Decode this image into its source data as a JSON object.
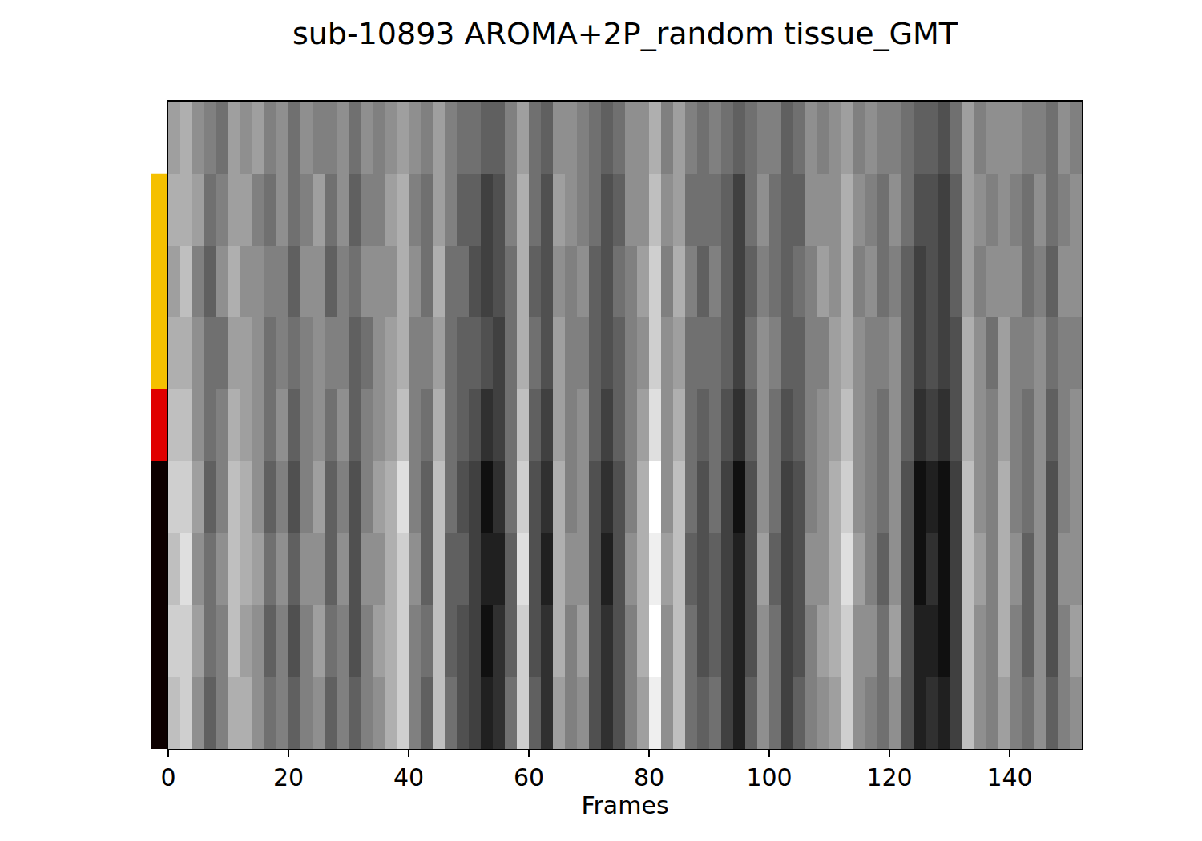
{
  "chart_data": {
    "type": "heatmap",
    "title": "sub-10893 AROMA+2P_random tissue_GMT",
    "x_label": "Frames",
    "x": [
      1,
      3,
      5,
      7,
      9,
      11,
      13,
      15,
      17,
      19,
      21,
      23,
      25,
      27,
      29,
      31,
      33,
      35,
      37,
      39,
      41,
      43,
      45,
      47,
      49,
      51,
      53,
      55,
      57,
      59,
      61,
      63,
      65,
      67,
      69,
      71,
      73,
      75,
      77,
      79,
      81,
      83,
      85,
      87,
      89,
      91,
      93,
      95,
      97,
      99,
      101,
      103,
      105,
      107,
      109,
      111,
      113,
      115,
      117,
      119,
      121,
      123,
      125,
      127,
      129,
      131,
      133,
      135,
      137,
      139,
      141,
      143,
      145,
      147,
      149,
      151
    ],
    "y": [
      0,
      1,
      2,
      3,
      4,
      5,
      6,
      7,
      8
    ],
    "xlim": [
      0,
      152
    ],
    "xticks": [
      0,
      20,
      40,
      60,
      80,
      100,
      120,
      140
    ],
    "ylim": [
      8.5,
      -0.5
    ],
    "tick_labels": "x",
    "zlim": [
      -0.8,
      0.8
    ],
    "color": "gray",
    "row_groups": [
      {
        "color": "#f5c000",
        "rows": [
          1,
          3
        ]
      },
      {
        "color": "#e00000",
        "rows": [
          4,
          4
        ]
      },
      {
        "color": "#0d0000",
        "rows": [
          5,
          8
        ]
      }
    ],
    "cells": [
      [
        0.2,
        0.3,
        0.1,
        0.0,
        -0.1,
        0.2,
        0.1,
        0.2,
        0.0,
        0.1,
        -0.1,
        0.1,
        0.0,
        0.0,
        0.1,
        -0.1,
        0.1,
        0.0,
        0.1,
        0.2,
        0.1,
        0.0,
        0.2,
        0.0,
        -0.1,
        -0.1,
        -0.2,
        -0.2,
        0.0,
        0.2,
        -0.1,
        -0.2,
        0.1,
        0.1,
        0.0,
        -0.1,
        -0.2,
        -0.1,
        0.1,
        0.1,
        0.3,
        0.0,
        0.2,
        0.0,
        -0.1,
        0.0,
        -0.1,
        -0.2,
        -0.1,
        0.0,
        0.0,
        -0.2,
        -0.1,
        0.1,
        0.0,
        0.1,
        0.2,
        0.0,
        0.1,
        0.0,
        0.0,
        -0.1,
        -0.2,
        -0.2,
        -0.3,
        -0.1,
        0.2,
        0.0,
        0.1,
        0.1,
        0.1,
        0.0,
        0.0,
        -0.1,
        0.1,
        0.0
      ],
      [
        0.3,
        0.3,
        0.2,
        -0.1,
        0.0,
        0.2,
        0.2,
        0.0,
        -0.1,
        0.1,
        -0.1,
        0.0,
        0.2,
        -0.1,
        0.1,
        -0.2,
        0.0,
        0.0,
        0.2,
        0.3,
        0.0,
        -0.1,
        0.2,
        0.0,
        -0.2,
        -0.2,
        -0.4,
        -0.3,
        0.0,
        0.3,
        -0.1,
        -0.3,
        0.2,
        0.1,
        0.0,
        -0.1,
        -0.3,
        -0.2,
        0.1,
        0.1,
        0.4,
        0.1,
        0.2,
        -0.1,
        -0.1,
        -0.1,
        -0.2,
        -0.4,
        -0.1,
        0.1,
        -0.1,
        -0.2,
        -0.2,
        0.1,
        0.1,
        0.1,
        0.3,
        0.1,
        0.0,
        -0.1,
        0.1,
        -0.1,
        -0.3,
        -0.3,
        -0.4,
        -0.2,
        0.2,
        0.1,
        0.0,
        0.1,
        0.0,
        -0.1,
        0.1,
        -0.1,
        0.0,
        0.1
      ],
      [
        0.2,
        0.4,
        0.0,
        -0.2,
        0.1,
        0.3,
        0.1,
        0.1,
        0.0,
        0.0,
        -0.2,
        0.1,
        0.1,
        -0.2,
        0.0,
        -0.1,
        0.1,
        0.1,
        0.1,
        0.3,
        0.1,
        -0.1,
        0.3,
        -0.1,
        -0.1,
        -0.3,
        -0.4,
        -0.3,
        -0.1,
        0.3,
        -0.2,
        -0.3,
        0.1,
        0.0,
        0.1,
        -0.2,
        -0.3,
        -0.1,
        0.0,
        0.2,
        0.5,
        0.0,
        0.3,
        0.0,
        -0.2,
        0.0,
        -0.2,
        -0.4,
        -0.2,
        0.0,
        -0.1,
        -0.2,
        -0.1,
        0.0,
        0.2,
        0.1,
        0.3,
        0.0,
        0.1,
        -0.1,
        0.0,
        -0.2,
        -0.4,
        -0.3,
        -0.4,
        -0.2,
        0.2,
        0.0,
        0.1,
        0.1,
        0.1,
        -0.1,
        0.0,
        -0.2,
        0.1,
        0.1
      ],
      [
        0.3,
        0.3,
        0.1,
        -0.1,
        -0.1,
        0.2,
        0.2,
        0.1,
        -0.1,
        0.0,
        -0.1,
        0.0,
        0.1,
        0.0,
        0.0,
        -0.2,
        -0.1,
        0.1,
        0.2,
        0.3,
        0.0,
        0.0,
        0.2,
        -0.1,
        -0.2,
        -0.2,
        -0.3,
        -0.4,
        -0.1,
        0.3,
        -0.1,
        -0.3,
        0.2,
        0.0,
        0.0,
        -0.2,
        -0.3,
        -0.2,
        0.0,
        0.1,
        0.5,
        0.1,
        0.2,
        -0.1,
        -0.1,
        -0.1,
        -0.2,
        -0.4,
        -0.1,
        0.1,
        0.0,
        -0.2,
        -0.2,
        0.0,
        0.0,
        0.2,
        0.3,
        0.1,
        0.0,
        0.0,
        0.1,
        -0.2,
        -0.4,
        -0.3,
        -0.4,
        -0.3,
        0.3,
        0.1,
        -0.1,
        0.2,
        0.0,
        0.0,
        0.1,
        -0.1,
        0.0,
        0.0
      ],
      [
        0.4,
        0.4,
        0.1,
        -0.1,
        0.0,
        0.3,
        0.2,
        0.1,
        -0.1,
        0.1,
        -0.2,
        0.0,
        0.1,
        -0.1,
        0.1,
        -0.2,
        0.0,
        0.1,
        0.2,
        0.4,
        0.0,
        -0.1,
        0.3,
        -0.1,
        -0.2,
        -0.3,
        -0.5,
        -0.4,
        -0.1,
        0.4,
        -0.2,
        -0.4,
        0.2,
        0.0,
        0.1,
        -0.2,
        -0.4,
        -0.2,
        0.0,
        0.2,
        0.6,
        0.1,
        0.3,
        -0.1,
        -0.2,
        -0.1,
        -0.3,
        -0.5,
        -0.2,
        0.1,
        -0.1,
        -0.3,
        -0.2,
        0.0,
        0.1,
        0.2,
        0.4,
        0.1,
        0.0,
        -0.1,
        0.1,
        -0.2,
        -0.5,
        -0.4,
        -0.5,
        -0.3,
        0.3,
        0.1,
        0.0,
        0.2,
        0.0,
        -0.1,
        0.1,
        -0.2,
        0.0,
        0.1
      ],
      [
        0.5,
        0.5,
        0.2,
        -0.2,
        0.0,
        0.4,
        0.3,
        0.1,
        -0.2,
        0.0,
        -0.3,
        0.0,
        0.2,
        -0.2,
        0.0,
        -0.3,
        0.0,
        0.2,
        0.3,
        0.6,
        0.0,
        -0.2,
        0.4,
        -0.1,
        -0.3,
        -0.4,
        -0.7,
        -0.5,
        -0.1,
        0.5,
        -0.3,
        -0.5,
        0.3,
        0.0,
        0.1,
        -0.3,
        -0.5,
        -0.3,
        0.0,
        0.3,
        0.8,
        0.1,
        0.4,
        -0.1,
        -0.3,
        -0.1,
        -0.4,
        -0.7,
        -0.3,
        0.1,
        -0.1,
        -0.4,
        -0.3,
        0.0,
        0.1,
        0.3,
        0.5,
        0.1,
        0.0,
        -0.1,
        0.1,
        -0.3,
        -0.7,
        -0.6,
        -0.7,
        -0.4,
        0.4,
        0.1,
        0.0,
        0.3,
        0.0,
        -0.1,
        0.1,
        -0.3,
        0.0,
        0.1
      ],
      [
        0.4,
        0.6,
        0.1,
        -0.1,
        0.1,
        0.4,
        0.3,
        0.2,
        -0.1,
        0.1,
        -0.2,
        0.1,
        0.1,
        -0.2,
        0.1,
        -0.3,
        0.1,
        0.1,
        0.3,
        0.5,
        0.1,
        -0.2,
        0.4,
        -0.2,
        -0.2,
        -0.4,
        -0.6,
        -0.6,
        -0.2,
        0.6,
        -0.3,
        -0.6,
        0.3,
        0.1,
        0.1,
        -0.3,
        -0.6,
        -0.3,
        0.1,
        0.3,
        0.7,
        0.2,
        0.4,
        -0.2,
        -0.3,
        -0.2,
        -0.4,
        -0.6,
        -0.3,
        0.2,
        -0.2,
        -0.4,
        -0.3,
        0.1,
        0.1,
        0.3,
        0.6,
        0.2,
        0.0,
        -0.2,
        0.1,
        -0.3,
        -0.7,
        -0.5,
        -0.7,
        -0.4,
        0.4,
        0.2,
        0.0,
        0.3,
        0.1,
        -0.2,
        0.1,
        -0.3,
        0.1,
        0.1
      ],
      [
        0.5,
        0.5,
        0.2,
        -0.1,
        0.0,
        0.4,
        0.2,
        0.1,
        -0.2,
        0.0,
        -0.3,
        0.0,
        0.2,
        -0.1,
        0.0,
        -0.3,
        0.0,
        0.2,
        0.3,
        0.5,
        0.0,
        -0.1,
        0.4,
        -0.2,
        -0.3,
        -0.4,
        -0.7,
        -0.5,
        -0.2,
        0.5,
        -0.3,
        -0.5,
        0.3,
        0.0,
        0.2,
        -0.3,
        -0.5,
        -0.3,
        0.0,
        0.3,
        0.8,
        0.1,
        0.4,
        -0.1,
        -0.3,
        -0.2,
        -0.4,
        -0.6,
        -0.3,
        0.1,
        -0.1,
        -0.4,
        -0.3,
        0.0,
        0.2,
        0.3,
        0.5,
        0.1,
        0.1,
        -0.1,
        0.2,
        -0.3,
        -0.6,
        -0.6,
        -0.7,
        -0.4,
        0.4,
        0.1,
        0.0,
        0.3,
        0.0,
        -0.2,
        0.1,
        -0.3,
        0.0,
        0.2
      ],
      [
        0.4,
        0.5,
        0.1,
        -0.2,
        0.0,
        0.3,
        0.3,
        0.1,
        -0.1,
        0.0,
        -0.2,
        0.0,
        0.1,
        -0.2,
        0.0,
        -0.2,
        0.0,
        0.1,
        0.3,
        0.5,
        0.0,
        -0.2,
        0.4,
        -0.1,
        -0.3,
        -0.4,
        -0.6,
        -0.5,
        -0.1,
        0.5,
        -0.2,
        -0.5,
        0.2,
        0.0,
        0.1,
        -0.3,
        -0.5,
        -0.3,
        0.0,
        0.2,
        0.7,
        0.1,
        0.4,
        -0.1,
        -0.2,
        -0.1,
        -0.4,
        -0.6,
        -0.2,
        0.1,
        -0.1,
        -0.4,
        -0.2,
        0.0,
        0.1,
        0.2,
        0.5,
        0.1,
        0.0,
        -0.1,
        0.1,
        -0.3,
        -0.6,
        -0.5,
        -0.6,
        -0.4,
        0.4,
        0.1,
        0.0,
        0.2,
        0.0,
        -0.1,
        0.1,
        -0.2,
        0.0,
        0.1
      ]
    ]
  }
}
